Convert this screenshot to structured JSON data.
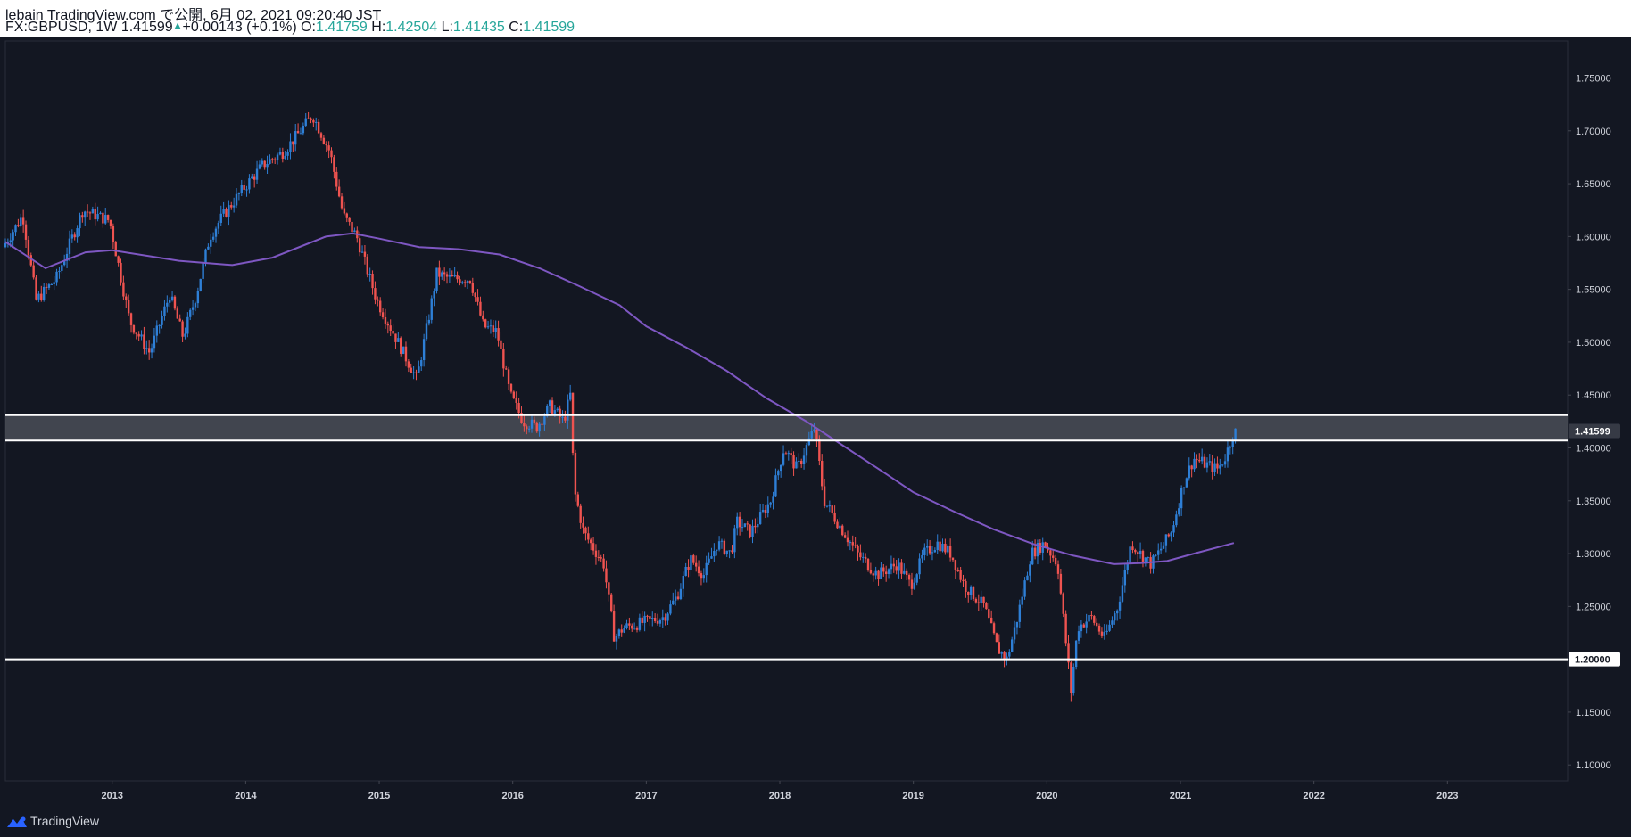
{
  "header": {
    "publisher": "lebain TradingView.com で公開, 6月 02, 2021 09:20:40 JST",
    "symbol": "FX:GBPUSD, 1W",
    "last": "1.41599",
    "change": "+0.00143 (+0.1%)",
    "open_label": "O:",
    "open": "1.41759",
    "high_label": "H:",
    "high": "1.42504",
    "low_label": "L:",
    "low": "1.41435",
    "close_label": "C:",
    "close": "1.41599"
  },
  "footer": {
    "brand": "TradingView"
  },
  "colors": {
    "background": "#131722",
    "up": "#2e7fd6",
    "down": "#ef5350",
    "ma": "#7e57c2",
    "lines": "#ffffff",
    "zone": "#4a4d57",
    "text": "#d1d4dc"
  },
  "chart_data": {
    "type": "candlestick",
    "title": "FX:GBPUSD, 1W",
    "y_axis": {
      "ticks": [
        "1.75000",
        "1.70000",
        "1.65000",
        "1.60000",
        "1.55000",
        "1.50000",
        "1.45000",
        "1.40000",
        "1.35000",
        "1.30000",
        "1.25000",
        "1.20000",
        "1.15000",
        "1.10000"
      ],
      "ylim": [
        1.085,
        1.785
      ]
    },
    "x_axis": {
      "ticks": [
        "2013",
        "2014",
        "2015",
        "2016",
        "2017",
        "2018",
        "2019",
        "2020",
        "2021",
        "2022",
        "2023"
      ],
      "xlim": [
        2012.2,
        2023.9
      ]
    },
    "price_labels": [
      "1.41599",
      "1.20000"
    ],
    "horizontal_lines": [
      1.2,
      1.407,
      1.431
    ],
    "zone": [
      1.407,
      1.431
    ],
    "moving_average": {
      "name": "",
      "points": [
        [
          2012.2,
          1.595
        ],
        [
          2012.5,
          1.57
        ],
        [
          2012.8,
          1.585
        ],
        [
          2013.0,
          1.587
        ],
        [
          2013.5,
          1.577
        ],
        [
          2013.9,
          1.573
        ],
        [
          2014.2,
          1.58
        ],
        [
          2014.6,
          1.6
        ],
        [
          2014.8,
          1.603
        ],
        [
          2015.0,
          1.598
        ],
        [
          2015.3,
          1.59
        ],
        [
          2015.6,
          1.588
        ],
        [
          2015.9,
          1.583
        ],
        [
          2016.2,
          1.57
        ],
        [
          2016.5,
          1.553
        ],
        [
          2016.8,
          1.535
        ],
        [
          2017.0,
          1.515
        ],
        [
          2017.3,
          1.495
        ],
        [
          2017.6,
          1.473
        ],
        [
          2017.9,
          1.447
        ],
        [
          2018.2,
          1.425
        ],
        [
          2018.5,
          1.4
        ],
        [
          2018.8,
          1.375
        ],
        [
          2019.0,
          1.358
        ],
        [
          2019.3,
          1.34
        ],
        [
          2019.6,
          1.323
        ],
        [
          2019.9,
          1.309
        ],
        [
          2020.2,
          1.298
        ],
        [
          2020.5,
          1.29
        ],
        [
          2020.7,
          1.291
        ],
        [
          2020.9,
          1.293
        ],
        [
          2021.1,
          1.3
        ],
        [
          2021.4,
          1.31
        ]
      ]
    },
    "candles_anchor_path": [
      [
        2012.2,
        1.59
      ],
      [
        2012.35,
        1.62
      ],
      [
        2012.45,
        1.54
      ],
      [
        2012.6,
        1.56
      ],
      [
        2012.8,
        1.625
      ],
      [
        2013.0,
        1.615
      ],
      [
        2013.15,
        1.52
      ],
      [
        2013.3,
        1.49
      ],
      [
        2013.45,
        1.545
      ],
      [
        2013.55,
        1.505
      ],
      [
        2013.65,
        1.545
      ],
      [
        2013.75,
        1.6
      ],
      [
        2013.85,
        1.62
      ],
      [
        2014.0,
        1.645
      ],
      [
        2014.15,
        1.668
      ],
      [
        2014.3,
        1.68
      ],
      [
        2014.4,
        1.695
      ],
      [
        2014.52,
        1.715
      ],
      [
        2014.65,
        1.68
      ],
      [
        2014.75,
        1.62
      ],
      [
        2014.85,
        1.6
      ],
      [
        2015.0,
        1.54
      ],
      [
        2015.1,
        1.515
      ],
      [
        2015.2,
        1.49
      ],
      [
        2015.3,
        1.465
      ],
      [
        2015.4,
        1.53
      ],
      [
        2015.45,
        1.565
      ],
      [
        2015.55,
        1.56
      ],
      [
        2015.7,
        1.56
      ],
      [
        2015.8,
        1.515
      ],
      [
        2015.9,
        1.51
      ],
      [
        2016.0,
        1.45
      ],
      [
        2016.1,
        1.425
      ],
      [
        2016.2,
        1.42
      ],
      [
        2016.3,
        1.44
      ],
      [
        2016.4,
        1.425
      ],
      [
        2016.45,
        1.45
      ],
      [
        2016.48,
        1.36
      ],
      [
        2016.55,
        1.32
      ],
      [
        2016.7,
        1.29
      ],
      [
        2016.78,
        1.22
      ],
      [
        2016.85,
        1.23
      ],
      [
        2017.0,
        1.235
      ],
      [
        2017.15,
        1.24
      ],
      [
        2017.25,
        1.26
      ],
      [
        2017.35,
        1.295
      ],
      [
        2017.45,
        1.28
      ],
      [
        2017.55,
        1.31
      ],
      [
        2017.65,
        1.3
      ],
      [
        2017.7,
        1.33
      ],
      [
        2017.8,
        1.32
      ],
      [
        2017.95,
        1.35
      ],
      [
        2018.05,
        1.4
      ],
      [
        2018.15,
        1.38
      ],
      [
        2018.28,
        1.42
      ],
      [
        2018.35,
        1.35
      ],
      [
        2018.45,
        1.33
      ],
      [
        2018.6,
        1.3
      ],
      [
        2018.75,
        1.28
      ],
      [
        2018.9,
        1.29
      ],
      [
        2019.0,
        1.27
      ],
      [
        2019.1,
        1.3
      ],
      [
        2019.2,
        1.31
      ],
      [
        2019.3,
        1.3
      ],
      [
        2019.4,
        1.27
      ],
      [
        2019.55,
        1.25
      ],
      [
        2019.65,
        1.21
      ],
      [
        2019.72,
        1.2
      ],
      [
        2019.8,
        1.24
      ],
      [
        2019.9,
        1.3
      ],
      [
        2020.0,
        1.31
      ],
      [
        2020.1,
        1.29
      ],
      [
        2020.2,
        1.17
      ],
      [
        2020.25,
        1.23
      ],
      [
        2020.35,
        1.24
      ],
      [
        2020.45,
        1.22
      ],
      [
        2020.55,
        1.25
      ],
      [
        2020.65,
        1.31
      ],
      [
        2020.72,
        1.3
      ],
      [
        2020.8,
        1.29
      ],
      [
        2020.95,
        1.32
      ],
      [
        2021.05,
        1.37
      ],
      [
        2021.12,
        1.39
      ],
      [
        2021.2,
        1.385
      ],
      [
        2021.3,
        1.38
      ],
      [
        2021.35,
        1.39
      ],
      [
        2021.42,
        1.415
      ]
    ]
  }
}
